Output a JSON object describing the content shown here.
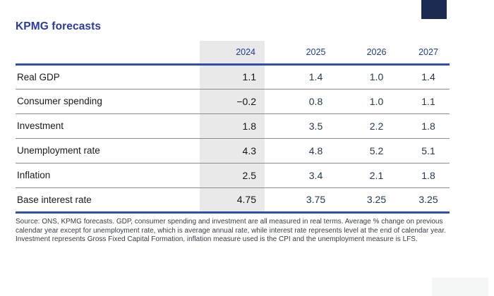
{
  "page": {
    "title": "KPMG forecasts"
  },
  "table": {
    "columns": [
      "",
      "2024",
      "2025",
      "2026",
      "2027"
    ],
    "highlighted_column": "2024",
    "rows": [
      {
        "label": "Real GDP",
        "values": [
          "1.1",
          "1.4",
          "1.0",
          "1.4"
        ]
      },
      {
        "label": "Consumer spending",
        "values": [
          "−0.2",
          "0.8",
          "1.0",
          "1.1"
        ]
      },
      {
        "label": "Investment",
        "values": [
          "1.8",
          "3.5",
          "2.2",
          "1.8"
        ]
      },
      {
        "label": "Unemployment rate",
        "values": [
          "4.3",
          "4.8",
          "5.2",
          "5.1"
        ]
      },
      {
        "label": "Inflation",
        "values": [
          "2.5",
          "3.4",
          "2.1",
          "1.8"
        ]
      },
      {
        "label": "Base interest rate",
        "values": [
          "4.75",
          "3.75",
          "3.25",
          "3.25"
        ]
      }
    ]
  },
  "footnote": "Source: ONS, KPMG forecasts. GDP, consumer spending and investment are all measured in real terms. Average % change on previous calendar year except for unemployment rate, which is average annual rate, while interest rate represents level at the end of calendar year. Investment represents Gross Fixed Capital Formation, inflation measure used is the CPI and the unemployment measure is LFS.",
  "colors": {
    "title_blue": "#2b3aa3",
    "year_blue": "#1c3c94",
    "rule_blue": "#2d4fb0",
    "value_navy": "#223a55",
    "label_black": "#1a1a1a",
    "col_gray": "#e9e9e9",
    "separator_gray": "#8c8c8c",
    "footnote_gray": "#353d49",
    "corner_navy": "#1c2b52",
    "corner_faint": "#f4f6f6"
  },
  "chart_data": {
    "type": "table",
    "title": "KPMG forecasts",
    "columns": [
      "2024",
      "2025",
      "2026",
      "2027"
    ],
    "highlighted_column": "2024",
    "rows": [
      {
        "label": "Real GDP",
        "values": [
          1.1,
          1.4,
          1.0,
          1.4
        ]
      },
      {
        "label": "Consumer spending",
        "values": [
          -0.2,
          0.8,
          1.0,
          1.1
        ]
      },
      {
        "label": "Investment",
        "values": [
          1.8,
          3.5,
          2.2,
          1.8
        ]
      },
      {
        "label": "Unemployment rate",
        "values": [
          4.3,
          4.8,
          5.2,
          5.1
        ]
      },
      {
        "label": "Inflation",
        "values": [
          2.5,
          3.4,
          2.1,
          1.8
        ]
      },
      {
        "label": "Base interest rate",
        "values": [
          4.75,
          3.75,
          3.25,
          3.25
        ]
      }
    ],
    "source_note": "Source: ONS, KPMG forecasts. GDP, consumer spending and investment are all measured in real terms. Average % change on previous calendar year except for unemployment rate, which is average annual rate, while interest rate represents level at the end of calendar year. Investment represents Gross Fixed Capital Formation, inflation measure used is the CPI and the unemployment measure is LFS."
  }
}
